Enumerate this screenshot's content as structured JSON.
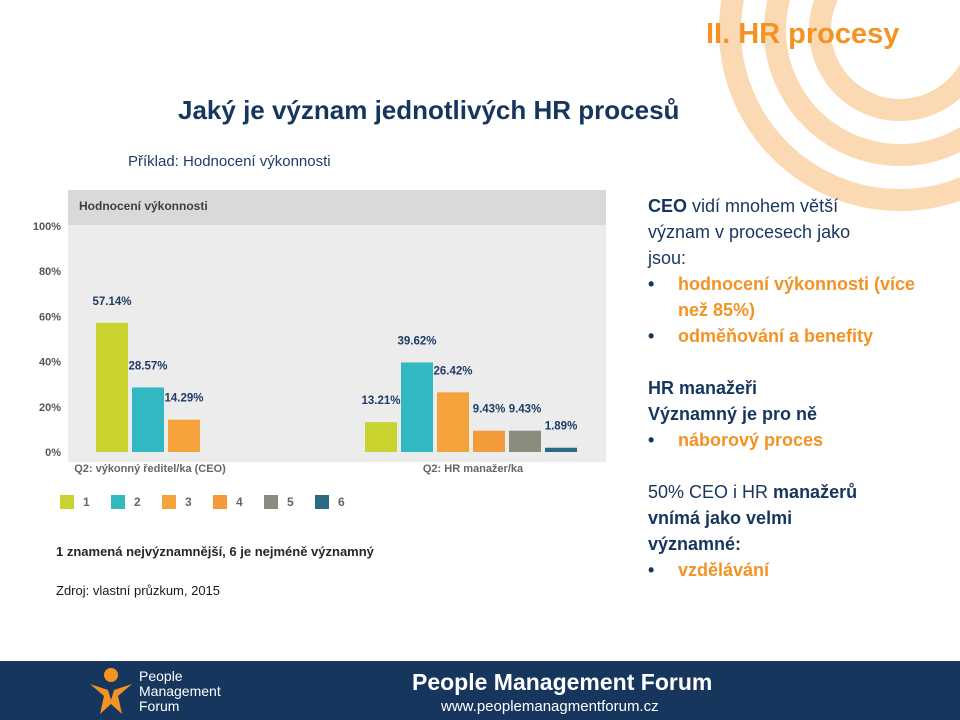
{
  "header": {
    "section_title": "II. HR procesy",
    "main_title": "Jaký je význam jednotlivých HR procesů",
    "subtitle": "Příklad: Hodnocení výkonnosti"
  },
  "chart_data": {
    "type": "bar",
    "title": "Hodnocení výkonnosti",
    "groups": [
      "Q2: výkonný ředitel/ka (CEO)",
      "Q2: HR manažer/ka"
    ],
    "series": [
      {
        "name": "1",
        "color": "#c9d32f",
        "values": [
          57.14,
          13.21
        ]
      },
      {
        "name": "2",
        "color": "#32b8c1",
        "values": [
          28.57,
          39.62
        ]
      },
      {
        "name": "3",
        "color": "#f4a23c",
        "values": [
          14.29,
          26.42
        ]
      },
      {
        "name": "4",
        "color": "#f39a3a",
        "values": [
          null,
          9.43
        ]
      },
      {
        "name": "5",
        "color": "#8c8c7e",
        "values": [
          null,
          9.43
        ]
      },
      {
        "name": "6",
        "color": "#2a6a85",
        "values": [
          null,
          1.89
        ]
      }
    ],
    "value_labels": [
      [
        "57.14%",
        "13.21%"
      ],
      [
        "28.57%",
        "39.62%"
      ],
      [
        "14.29%",
        "26.42%"
      ],
      [
        null,
        "9.43%"
      ],
      [
        null,
        "9.43%"
      ],
      [
        null,
        "1.89%"
      ]
    ],
    "y_ticks": [
      "0%",
      "20%",
      "40%",
      "60%",
      "80%",
      "100%"
    ],
    "ylim": [
      0,
      100
    ],
    "grid": false,
    "legend": "bottom"
  },
  "chart_notes": {
    "scale": "1 znamená nejvýznamnější, 6 je nejméně významný",
    "source": "Zdroj: vlastní průzkum, 2015"
  },
  "right_panel": {
    "ceo_line1_bold": "CEO",
    "ceo_line1_rest": " vidí mnohem větší",
    "ceo_line2": "význam v procesech jako",
    "ceo_line3": "jsou:",
    "ceo_bullets": [
      "hodnocení výkonnosti (více než 85%)",
      "odměňování a benefity"
    ],
    "hr_line1": "HR manažeři",
    "hr_line2": "Významný je pro ně",
    "hr_bullets": [
      "náborový proces"
    ],
    "both_line1_a": "50% CEO i HR",
    "both_line1_b": " manažerů",
    "both_line2": "vnímá jako velmi",
    "both_line3": "významné:",
    "both_bullets": [
      "vzdělávání"
    ]
  },
  "footer": {
    "logo_line1": "People",
    "logo_line2": "Management",
    "logo_line3": "Forum",
    "name": "People Management Forum",
    "url": "www.peoplemanagmentforum.cz"
  }
}
